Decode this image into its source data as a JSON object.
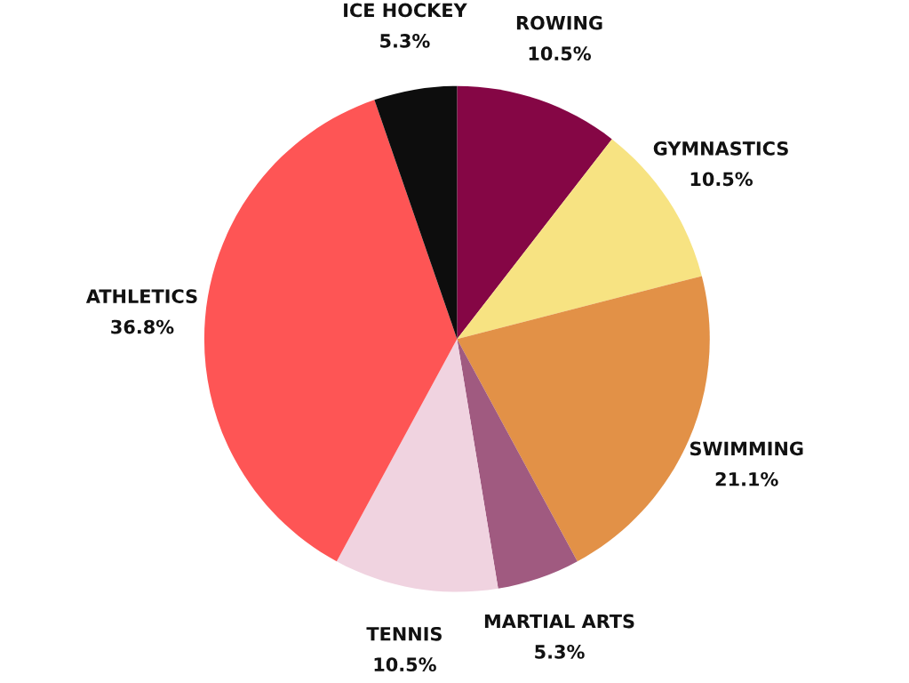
{
  "chart_data": {
    "type": "pie",
    "categories": [
      "ROWING",
      "GYMNASTICS",
      "SWIMMING",
      "MARTIAL ARTS",
      "TENNIS",
      "ATHLETICS",
      "ICE HOCKEY"
    ],
    "values": [
      10.5,
      10.5,
      21.1,
      5.3,
      10.5,
      36.8,
      5.3
    ],
    "colors": [
      "#850645",
      "#f7e382",
      "#e29147",
      "#a05a80",
      "#f0d3e0",
      "#fe5555",
      "#0d0d0d"
    ],
    "value_labels": [
      "10.5%",
      "10.5%",
      "21.1%",
      "5.3%",
      "10.5%",
      "36.8%",
      "5.3%"
    ]
  }
}
